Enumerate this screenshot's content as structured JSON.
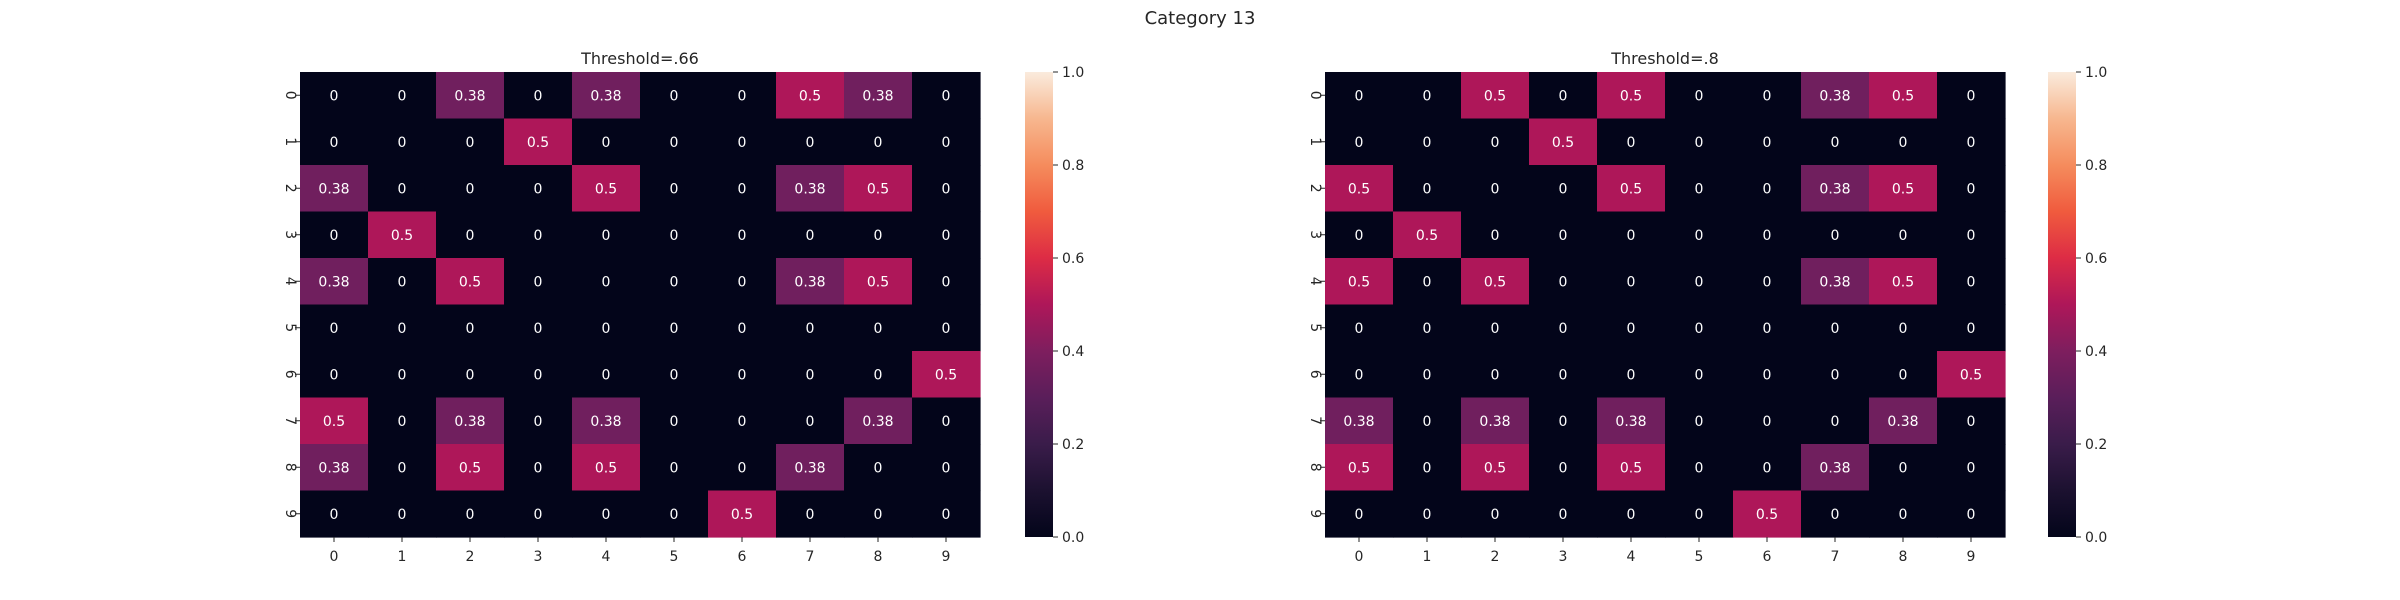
{
  "figure": {
    "suptitle": "Category 13"
  },
  "chart_data": [
    {
      "type": "heatmap",
      "title": "Threshold=.66",
      "xlabel": "",
      "ylabel": "",
      "x_categories": [
        "0",
        "1",
        "2",
        "3",
        "4",
        "5",
        "6",
        "7",
        "8",
        "9"
      ],
      "y_categories": [
        "0",
        "1",
        "2",
        "3",
        "4",
        "5",
        "6",
        "7",
        "8",
        "9"
      ],
      "values": [
        [
          0,
          0,
          0.38,
          0,
          0.38,
          0,
          0,
          0.5,
          0.38,
          0
        ],
        [
          0,
          0,
          0,
          0.5,
          0,
          0,
          0,
          0,
          0,
          0
        ],
        [
          0.38,
          0,
          0,
          0,
          0.5,
          0,
          0,
          0.38,
          0.5,
          0
        ],
        [
          0,
          0.5,
          0,
          0,
          0,
          0,
          0,
          0,
          0,
          0
        ],
        [
          0.38,
          0,
          0.5,
          0,
          0,
          0,
          0,
          0.38,
          0.5,
          0
        ],
        [
          0,
          0,
          0,
          0,
          0,
          0,
          0,
          0,
          0,
          0
        ],
        [
          0,
          0,
          0,
          0,
          0,
          0,
          0,
          0,
          0,
          0.5
        ],
        [
          0.5,
          0,
          0.38,
          0,
          0.38,
          0,
          0,
          0,
          0.38,
          0
        ],
        [
          0.38,
          0,
          0.5,
          0,
          0.5,
          0,
          0,
          0.38,
          0,
          0
        ],
        [
          0,
          0,
          0,
          0,
          0,
          0,
          0.5,
          0,
          0,
          0
        ]
      ],
      "colorbar": {
        "range": [
          0.0,
          1.0
        ],
        "ticks": [
          "0.0",
          "0.2",
          "0.4",
          "0.6",
          "0.8",
          "1.0"
        ]
      },
      "colormap": "rocket",
      "annotations": true
    },
    {
      "type": "heatmap",
      "title": "Threshold=.8",
      "xlabel": "",
      "ylabel": "",
      "x_categories": [
        "0",
        "1",
        "2",
        "3",
        "4",
        "5",
        "6",
        "7",
        "8",
        "9"
      ],
      "y_categories": [
        "0",
        "1",
        "2",
        "3",
        "4",
        "5",
        "6",
        "7",
        "8",
        "9"
      ],
      "values": [
        [
          0,
          0,
          0.5,
          0,
          0.5,
          0,
          0,
          0.38,
          0.5,
          0
        ],
        [
          0,
          0,
          0,
          0.5,
          0,
          0,
          0,
          0,
          0,
          0
        ],
        [
          0.5,
          0,
          0,
          0,
          0.5,
          0,
          0,
          0.38,
          0.5,
          0
        ],
        [
          0,
          0.5,
          0,
          0,
          0,
          0,
          0,
          0,
          0,
          0
        ],
        [
          0.5,
          0,
          0.5,
          0,
          0,
          0,
          0,
          0.38,
          0.5,
          0
        ],
        [
          0,
          0,
          0,
          0,
          0,
          0,
          0,
          0,
          0,
          0
        ],
        [
          0,
          0,
          0,
          0,
          0,
          0,
          0,
          0,
          0,
          0.5
        ],
        [
          0.38,
          0,
          0.38,
          0,
          0.38,
          0,
          0,
          0,
          0.38,
          0
        ],
        [
          0.5,
          0,
          0.5,
          0,
          0.5,
          0,
          0,
          0.38,
          0,
          0
        ],
        [
          0,
          0,
          0,
          0,
          0,
          0,
          0.5,
          0,
          0,
          0
        ]
      ],
      "colorbar": {
        "range": [
          0.0,
          1.0
        ],
        "ticks": [
          "0.0",
          "0.2",
          "0.4",
          "0.6",
          "0.8",
          "1.0"
        ]
      },
      "colormap": "rocket",
      "annotations": true
    }
  ]
}
